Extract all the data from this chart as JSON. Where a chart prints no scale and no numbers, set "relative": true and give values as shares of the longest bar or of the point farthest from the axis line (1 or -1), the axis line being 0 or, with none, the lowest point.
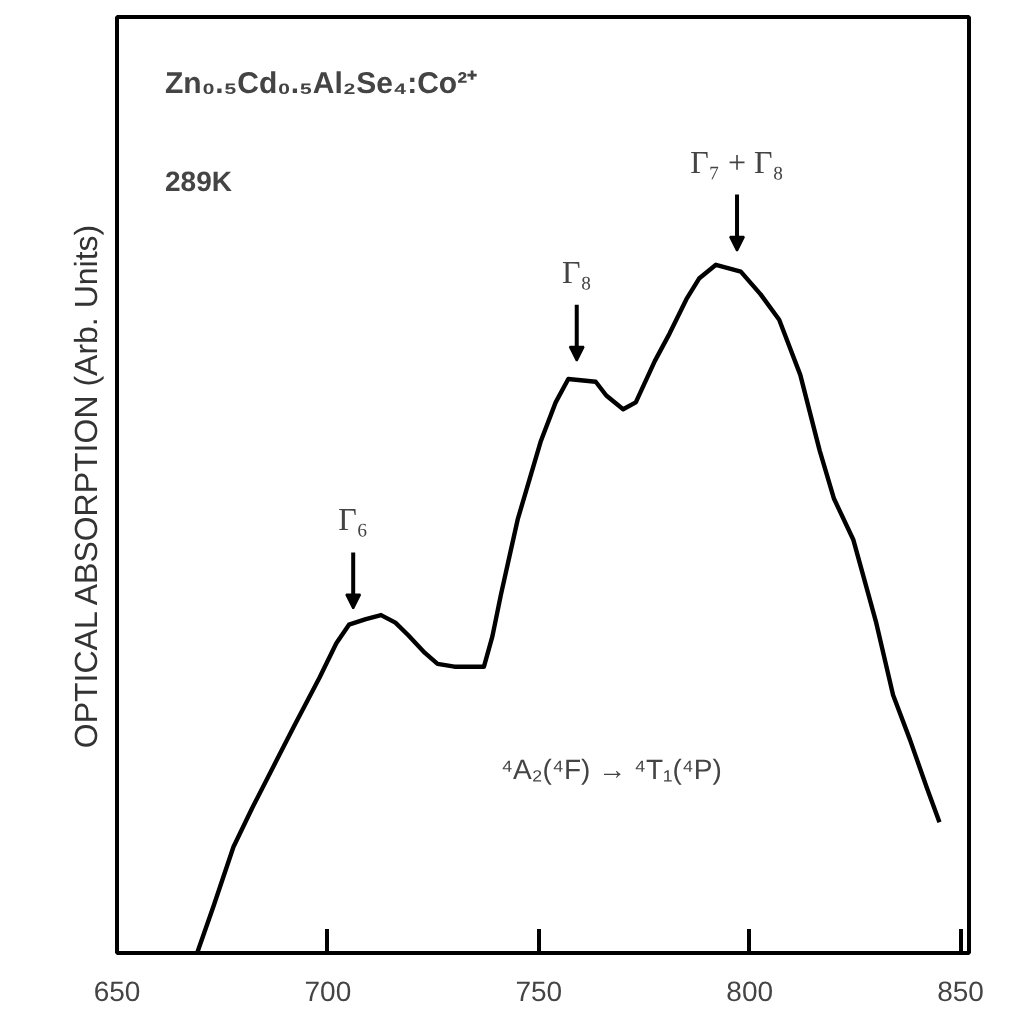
{
  "chart_data": {
    "type": "line",
    "relative": true,
    "ylabel": "OPTICAL ABSORPTION (Arb. Units)",
    "xlim": [
      650,
      852
    ],
    "xticks": [
      650,
      700,
      750,
      800,
      850
    ],
    "x": [
      669,
      673,
      677.6,
      682,
      687,
      692,
      698,
      702,
      705,
      709,
      712.6,
      716,
      719,
      723,
      726,
      730,
      737,
      739,
      741,
      745,
      750.5,
      754,
      757,
      763.5,
      766,
      770,
      773,
      777.5,
      781,
      785,
      788,
      792,
      797.9,
      802.6,
      807,
      812,
      816.6,
      820,
      824.6,
      830,
      834,
      838,
      842,
      845
    ],
    "series": [
      {
        "color": "#000000",
        "values": [
          0,
          0.07,
          0.154,
          0.21,
          0.27,
          0.33,
          0.4,
          0.45,
          0.477,
          0.485,
          0.491,
          0.48,
          0.462,
          0.436,
          0.42,
          0.416,
          0.416,
          0.46,
          0.52,
          0.63,
          0.744,
          0.8,
          0.834,
          0.83,
          0.81,
          0.79,
          0.8,
          0.86,
          0.9,
          0.95,
          0.98,
          1.0,
          0.99,
          0.957,
          0.92,
          0.84,
          0.73,
          0.66,
          0.6,
          0.48,
          0.375,
          0.31,
          0.24,
          0.19
        ]
      }
    ],
    "annotations": [
      "Zn₀.₅Cd₀.₅Al₂Se₄:Co²⁺",
      "289K",
      "⁴A₂(⁴F) → ⁴T₁(⁴P)",
      {
        "text": "Γ₆",
        "x": 706,
        "y": 0.48
      },
      {
        "text": "Γ₈",
        "x": 759,
        "y": 0.84
      },
      {
        "text": "Γ₇ + Γ₈",
        "x": 797,
        "y": 1.0
      }
    ],
    "grid": false
  }
}
